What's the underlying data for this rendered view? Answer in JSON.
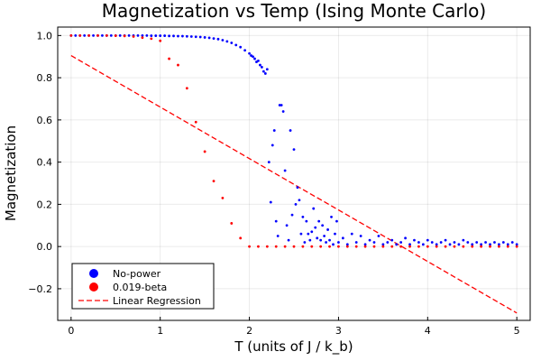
{
  "chart_data": {
    "type": "scatter",
    "title": "Magnetization vs Temp (Ising Monte Carlo)",
    "xlabel": "T (units of J / k_b)",
    "ylabel": "Magnetization",
    "xlim": [
      -0.15,
      5.15
    ],
    "ylim": [
      -0.35,
      1.04
    ],
    "xticks": [
      0,
      1,
      2,
      3,
      4,
      5
    ],
    "xtick_labels": [
      "0",
      "1",
      "2",
      "3",
      "4",
      "5"
    ],
    "yticks": [
      -0.2,
      0.0,
      0.2,
      0.4,
      0.6,
      0.8,
      1.0
    ],
    "ytick_labels": [
      "−0.2",
      "0.0",
      "0.2",
      "0.4",
      "0.6",
      "0.8",
      "1.0"
    ],
    "grid": true,
    "legend_position": "bottom-left",
    "series": [
      {
        "name": "No-power",
        "kind": "scatter",
        "color": "#0000ff",
        "x": [
          0.0,
          0.05,
          0.1,
          0.15,
          0.2,
          0.25,
          0.3,
          0.35,
          0.4,
          0.45,
          0.5,
          0.55,
          0.6,
          0.65,
          0.7,
          0.75,
          0.8,
          0.85,
          0.9,
          0.95,
          1.0,
          1.05,
          1.1,
          1.15,
          1.2,
          1.25,
          1.3,
          1.35,
          1.4,
          1.45,
          1.5,
          1.55,
          1.6,
          1.65,
          1.7,
          1.75,
          1.8,
          1.85,
          1.9,
          1.95,
          2.0,
          2.02,
          2.04,
          2.06,
          2.08,
          2.1,
          2.12,
          2.14,
          2.16,
          2.18,
          2.2,
          2.22,
          2.24,
          2.26,
          2.28,
          2.3,
          2.32,
          2.34,
          2.36,
          2.38,
          2.4,
          2.42,
          2.44,
          2.46,
          2.48,
          2.5,
          2.52,
          2.54,
          2.56,
          2.58,
          2.6,
          2.62,
          2.64,
          2.66,
          2.68,
          2.7,
          2.72,
          2.74,
          2.76,
          2.78,
          2.8,
          2.82,
          2.84,
          2.86,
          2.88,
          2.9,
          2.92,
          2.94,
          2.96,
          2.98,
          3.0,
          3.05,
          3.1,
          3.15,
          3.2,
          3.25,
          3.3,
          3.35,
          3.4,
          3.45,
          3.5,
          3.55,
          3.6,
          3.65,
          3.7,
          3.75,
          3.8,
          3.85,
          3.9,
          3.95,
          4.0,
          4.05,
          4.1,
          4.15,
          4.2,
          4.25,
          4.3,
          4.35,
          4.4,
          4.45,
          4.5,
          4.55,
          4.6,
          4.65,
          4.7,
          4.75,
          4.8,
          4.85,
          4.9,
          4.95,
          5.0
        ],
        "y": [
          1.0,
          1.0,
          1.0,
          1.0,
          1.0,
          1.0,
          1.0,
          1.0,
          1.0,
          1.0,
          1.0,
          1.0,
          1.0,
          1.0,
          1.0,
          1.0,
          1.0,
          1.0,
          0.999,
          0.999,
          0.999,
          0.999,
          0.998,
          0.998,
          0.997,
          0.997,
          0.996,
          0.995,
          0.994,
          0.993,
          0.991,
          0.989,
          0.986,
          0.983,
          0.978,
          0.972,
          0.965,
          0.955,
          0.945,
          0.93,
          0.915,
          0.905,
          0.9,
          0.89,
          0.875,
          0.88,
          0.86,
          0.85,
          0.83,
          0.82,
          0.84,
          0.4,
          0.21,
          0.48,
          0.55,
          0.12,
          0.05,
          0.67,
          0.67,
          0.64,
          0.36,
          0.1,
          0.03,
          0.55,
          0.15,
          0.46,
          0.2,
          0.28,
          0.22,
          0.06,
          0.14,
          0.02,
          0.12,
          0.06,
          0.03,
          0.07,
          0.18,
          0.09,
          0.04,
          0.12,
          0.03,
          0.1,
          0.05,
          0.02,
          0.08,
          0.03,
          0.14,
          0.01,
          0.06,
          0.12,
          0.02,
          0.04,
          0.01,
          0.06,
          0.02,
          0.05,
          0.01,
          0.03,
          0.02,
          0.05,
          0.01,
          0.02,
          0.03,
          0.01,
          0.02,
          0.04,
          0.01,
          0.03,
          0.02,
          0.01,
          0.03,
          0.02,
          0.01,
          0.02,
          0.03,
          0.01,
          0.02,
          0.01,
          0.03,
          0.02,
          0.01,
          0.02,
          0.01,
          0.02,
          0.01,
          0.02,
          0.01,
          0.02,
          0.01,
          0.02,
          0.01
        ]
      },
      {
        "name": "0.019-beta",
        "kind": "scatter",
        "color": "#ff0000",
        "x": [
          0.0,
          0.1,
          0.2,
          0.3,
          0.4,
          0.5,
          0.6,
          0.7,
          0.8,
          0.9,
          1.0,
          1.1,
          1.2,
          1.3,
          1.4,
          1.5,
          1.6,
          1.7,
          1.8,
          1.9,
          2.0,
          2.1,
          2.2,
          2.3,
          2.4,
          2.5,
          2.6,
          2.7,
          2.8,
          2.9,
          3.0,
          3.1,
          3.2,
          3.3,
          3.4,
          3.5,
          3.6,
          3.7,
          3.8,
          3.9,
          4.0,
          4.1,
          4.2,
          4.3,
          4.4,
          4.5,
          4.6,
          4.7,
          4.8,
          4.9,
          5.0
        ],
        "y": [
          1.0,
          1.0,
          1.0,
          1.0,
          1.0,
          0.999,
          0.998,
          0.995,
          0.99,
          0.985,
          0.975,
          0.89,
          0.86,
          0.75,
          0.59,
          0.45,
          0.31,
          0.23,
          0.11,
          0.04,
          0.0,
          0.0,
          0.0,
          0.0,
          0.0,
          0.0,
          0.0,
          0.0,
          0.0,
          0.0,
          0.0,
          0.0,
          0.0,
          0.0,
          0.0,
          0.0,
          0.0,
          0.0,
          0.0,
          0.0,
          0.0,
          0.0,
          0.0,
          0.0,
          0.0,
          0.0,
          0.0,
          0.0,
          0.0,
          0.0,
          0.0
        ]
      },
      {
        "name": "Linear Regression",
        "kind": "line",
        "color": "#ff0000",
        "dash": "dashed",
        "x": [
          0,
          5
        ],
        "y": [
          0.905,
          -0.315
        ]
      }
    ]
  }
}
